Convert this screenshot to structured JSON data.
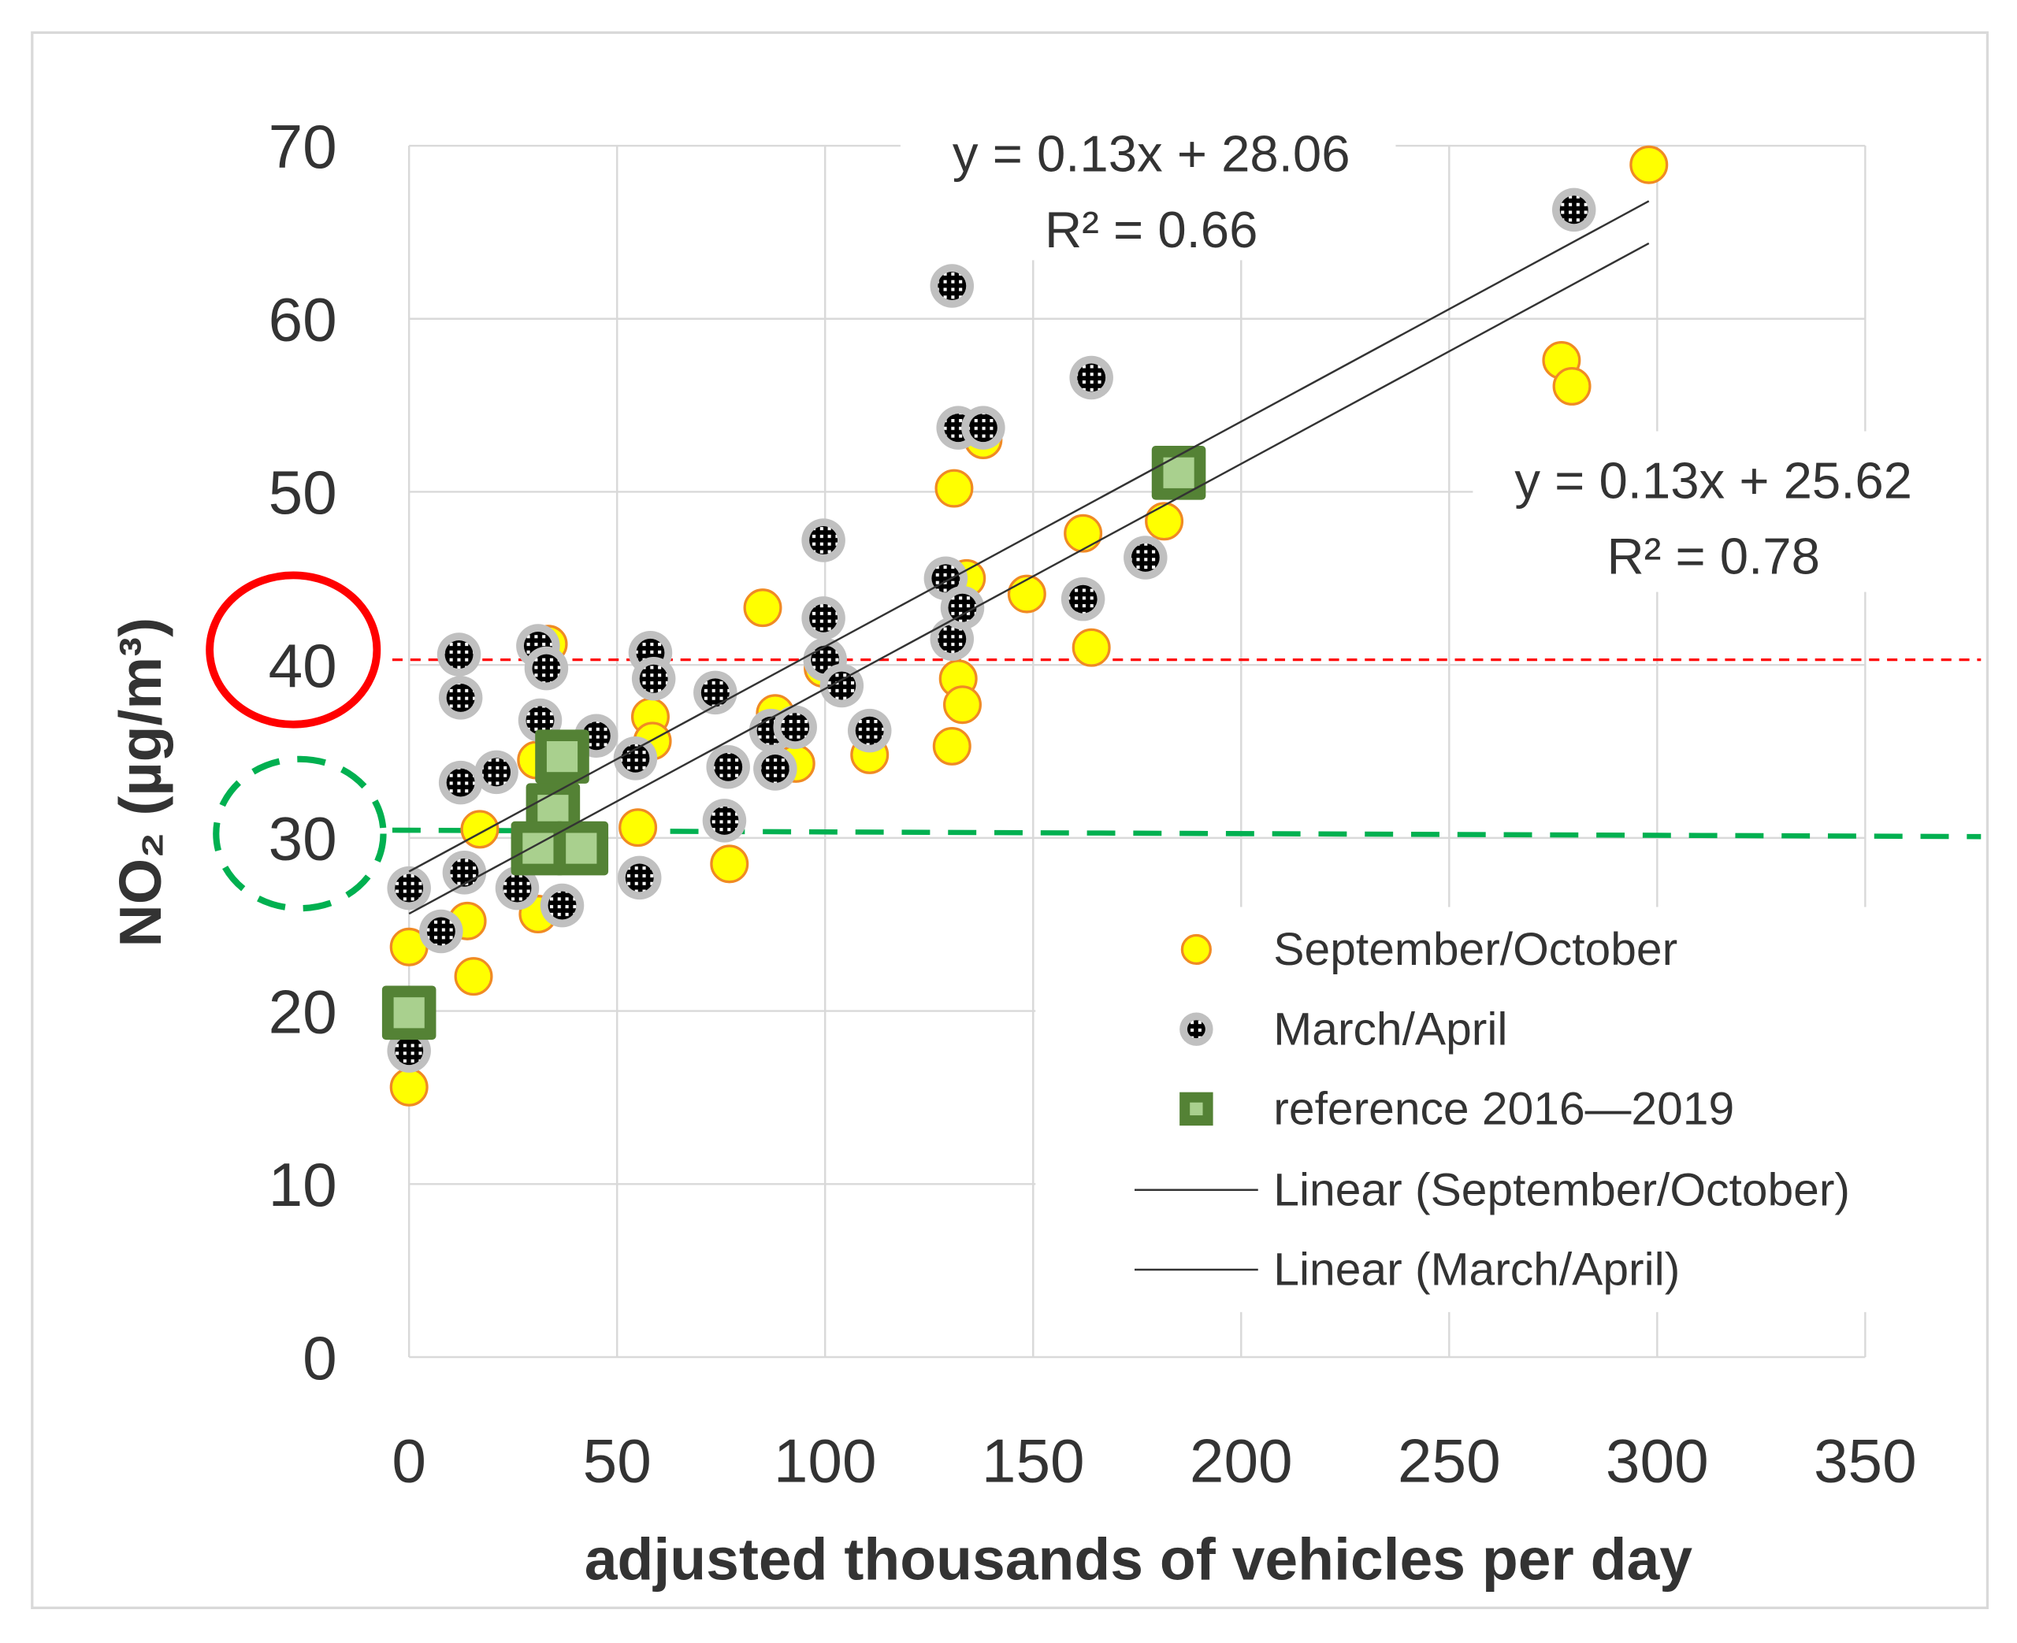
{
  "chart_data": {
    "type": "scatter",
    "title": "",
    "xlabel": "adjusted thousands of vehicles per day",
    "ylabel": "NO₂ (µg/m³)",
    "xlim": [
      0,
      350
    ],
    "ylim": [
      0,
      70
    ],
    "xticks": [
      0,
      50,
      100,
      150,
      200,
      250,
      300,
      350
    ],
    "yticks": [
      0,
      10,
      20,
      30,
      40,
      50,
      60,
      70
    ],
    "grid": true,
    "legend_position": "bottom-right",
    "series": [
      {
        "name": "September/October",
        "marker": "circle-yellow",
        "color": "#ffff00",
        "edge": "#f08a24",
        "points": [
          [
            0,
            15.6
          ],
          [
            0,
            23.7
          ],
          [
            14,
            25.2
          ],
          [
            15.5,
            22
          ],
          [
            17,
            30.5
          ],
          [
            31,
            25.6
          ],
          [
            33.5,
            41.2
          ],
          [
            30.6,
            34.5
          ],
          [
            55,
            30.6
          ],
          [
            58,
            37
          ],
          [
            58.5,
            35.6
          ],
          [
            77,
            28.5
          ],
          [
            85,
            43.3
          ],
          [
            88,
            37.2
          ],
          [
            93,
            34.3
          ],
          [
            99.5,
            39.8
          ],
          [
            110.7,
            34.8
          ],
          [
            130.5,
            35.3
          ],
          [
            131,
            50.2
          ],
          [
            132,
            39.2
          ],
          [
            133,
            37.7
          ],
          [
            134,
            45
          ],
          [
            138,
            53
          ],
          [
            148.5,
            44.1
          ],
          [
            162,
            47.6
          ],
          [
            164,
            41
          ],
          [
            181.5,
            48.3
          ],
          [
            298,
            68.9
          ],
          [
            277,
            57.6
          ],
          [
            279.5,
            56.1
          ]
        ]
      },
      {
        "name": "March/April",
        "marker": "circle-grey-pattern",
        "color": "#c0c0c0",
        "edge": "#000000",
        "points": [
          [
            0,
            27.1
          ],
          [
            0,
            17.7
          ],
          [
            7.7,
            24.6
          ],
          [
            12,
            40.6
          ],
          [
            12.4,
            38.1
          ],
          [
            12.4,
            33.2
          ],
          [
            13.3,
            28
          ],
          [
            21,
            33.8
          ],
          [
            26,
            27.1
          ],
          [
            31,
            41.1
          ],
          [
            31.5,
            36.8
          ],
          [
            33,
            39.8
          ],
          [
            36.8,
            26.1
          ],
          [
            45,
            35.9
          ],
          [
            54.4,
            34.6
          ],
          [
            55.4,
            27.7
          ],
          [
            58,
            40.7
          ],
          [
            58.8,
            39.2
          ],
          [
            73.6,
            38.4
          ],
          [
            75.8,
            31
          ],
          [
            76.7,
            34.1
          ],
          [
            87,
            36.2
          ],
          [
            88,
            34
          ],
          [
            92.8,
            36.4
          ],
          [
            99.6,
            47.2
          ],
          [
            99.6,
            42.7
          ],
          [
            100,
            40.3
          ],
          [
            104,
            38.8
          ],
          [
            110.7,
            36.2
          ],
          [
            129,
            45
          ],
          [
            130.5,
            61.9
          ],
          [
            130.5,
            41.5
          ],
          [
            133,
            43.3
          ],
          [
            132,
            53.7
          ],
          [
            138,
            53.7
          ],
          [
            162,
            43.8
          ],
          [
            164,
            56.6
          ],
          [
            177,
            46.2
          ],
          [
            280,
            66.3
          ]
        ]
      },
      {
        "name": "reference 2016—2019",
        "marker": "square-green",
        "color": "#a9d08e",
        "edge": "#548235",
        "points": [
          [
            0,
            19.9
          ],
          [
            36.8,
            34.7
          ],
          [
            34.6,
            31.6
          ],
          [
            31,
            29.4
          ],
          [
            41.4,
            29.4
          ],
          [
            185,
            51.1
          ]
        ]
      }
    ],
    "trendlines": [
      {
        "name": "Linear (September/October)",
        "slope": 0.13,
        "intercept": 25.62,
        "x_range": [
          0,
          298
        ],
        "equation": "y = 0.13x + 25.62",
        "r2": "R² = 0.78"
      },
      {
        "name": "Linear (March/April)",
        "slope": 0.13,
        "intercept": 28.06,
        "x_range": [
          0,
          298
        ],
        "equation": "y = 0.13x + 28.06",
        "r2": "R² = 0.66"
      }
    ],
    "reference_lines": [
      {
        "y": 40.3,
        "color": "#ff0000",
        "style": "dashed-fine"
      },
      {
        "y": 30.3,
        "color": "#00b050",
        "style": "dashed-bold"
      }
    ],
    "highlights": [
      {
        "label": "40",
        "color": "#ff0000",
        "shape": "solid-circle"
      },
      {
        "label": "30",
        "color": "#00b050",
        "shape": "dashed-circle"
      }
    ],
    "legend": [
      "September/October",
      "March/April",
      "reference 2016—2019",
      "Linear (September/October)",
      "Linear (March/April)"
    ]
  }
}
